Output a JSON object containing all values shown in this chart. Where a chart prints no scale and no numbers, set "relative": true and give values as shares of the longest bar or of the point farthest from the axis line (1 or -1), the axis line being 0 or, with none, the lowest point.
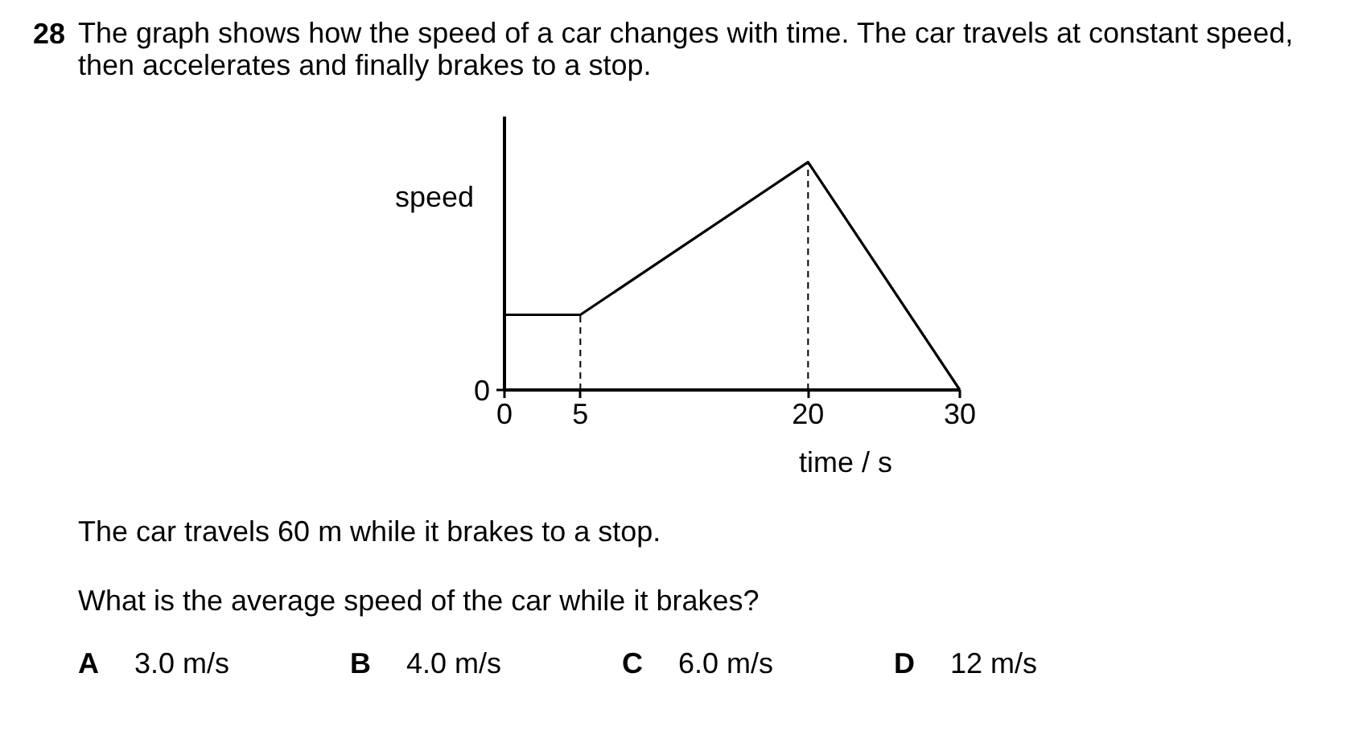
{
  "chart_data": {
    "type": "line",
    "title": "28 The graph shows how the speed of a car changes with time. The car travels at constant speed, then accelerates and finally brakes to a stop.",
    "xlabel": "time / s",
    "ylabel": "speed",
    "relative": true,
    "x": [
      0,
      5,
      20,
      30
    ],
    "values": [
      0.33,
      0.33,
      1,
      0
    ],
    "color": "#000000",
    "line_style": "solid",
    "xlim": [
      0,
      30
    ],
    "xticks": [
      0,
      5,
      20,
      30
    ],
    "ref_lines": [
      {
        "axis": "x",
        "value": 5,
        "color": "#000000",
        "line_style": "dashed"
      },
      {
        "axis": "x",
        "value": 20,
        "color": "#000000",
        "line_style": "dashed"
      }
    ],
    "annotations": [
      "0",
      "The car travels 60 m while it brakes to a stop.",
      "What is the average speed of the car while it brakes?",
      "A 3.0 m/s",
      "B 4.0 m/s",
      "C 6.0 m/s",
      "D 12 m/s"
    ]
  }
}
